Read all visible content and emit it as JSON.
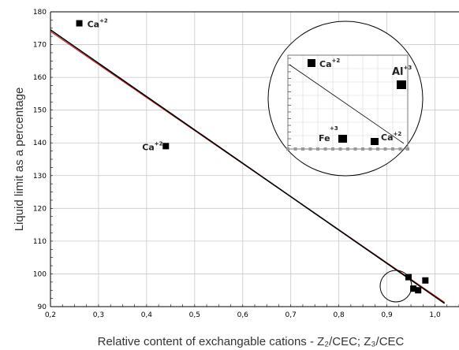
{
  "chart_data": {
    "type": "scatter",
    "xlabel": "Relative content of exchangable cations -  Z₂/CEC; Z₃/CEC",
    "ylabel": "Liquid limit as a percentage",
    "xlim": [
      0.2,
      1.05
    ],
    "ylim": [
      90,
      180
    ],
    "x_ticks": [
      "0,2",
      "0,3",
      "0,4",
      "0,5",
      "0,6",
      "0,7",
      "0,8",
      "0,9",
      "1,0"
    ],
    "y_ticks": [
      "90",
      "100",
      "110",
      "120",
      "130",
      "140",
      "150",
      "160",
      "170",
      "180"
    ],
    "grid": true,
    "points": [
      {
        "x": 0.26,
        "y": 176.5,
        "label": "Ca",
        "label_sup": "+2"
      },
      {
        "x": 0.44,
        "y": 139,
        "label": "Ca",
        "label_sup": "+2"
      },
      {
        "x": 0.945,
        "y": 99,
        "label": "",
        "label_sup": ""
      },
      {
        "x": 0.98,
        "y": 98,
        "label": "",
        "label_sup": ""
      },
      {
        "x": 0.955,
        "y": 95.5,
        "label": "",
        "label_sup": ""
      },
      {
        "x": 0.965,
        "y": 95,
        "label": "",
        "label_sup": ""
      }
    ],
    "fit_lines": [
      {
        "name": "",
        "color": "#000000",
        "x": [
          0.2,
          1.02
        ],
        "y": [
          174.5,
          91
        ]
      },
      {
        "name": "",
        "color": "#d02020",
        "x": [
          0.2,
          1.02
        ],
        "y": [
          174,
          91.3
        ]
      }
    ],
    "inset": {
      "labels": [
        {
          "text": "Ca",
          "sup": "+2",
          "big": false
        },
        {
          "text": "Al",
          "sup": "+3",
          "big": true
        },
        {
          "text": "Fe",
          "sup": "+3",
          "big": false
        },
        {
          "text": "Ca",
          "sup": "+2",
          "big": false
        }
      ]
    }
  }
}
